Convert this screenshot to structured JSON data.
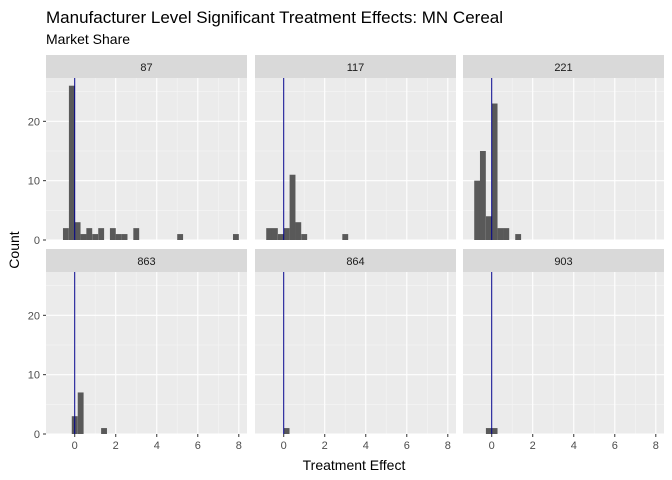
{
  "chart_data": {
    "type": "bar",
    "chart_kind": "faceted histogram",
    "title": "Manufacturer Level Significant Treatment Effects: MN Cereal",
    "subtitle": "Market Share",
    "xlabel": "Treatment Effect",
    "ylabel": "Count",
    "xlim": [
      -1.4,
      8.4
    ],
    "ylim": [
      0,
      27.3
    ],
    "x_ticks": [
      0,
      2,
      4,
      6,
      8
    ],
    "y_ticks": [
      0,
      10,
      20
    ],
    "bin_width": 0.2857,
    "grid": true,
    "reference_line": {
      "x": 0,
      "color": "#00008b"
    },
    "bar_color": "#595959",
    "panel_background": "#ebebeb",
    "strip_background": "#d9d9d9",
    "facets": [
      {
        "label": "87",
        "bins": [
          {
            "x": -0.43,
            "count": 2
          },
          {
            "x": -0.14,
            "count": 26
          },
          {
            "x": 0.14,
            "count": 3
          },
          {
            "x": 0.43,
            "count": 1
          },
          {
            "x": 0.71,
            "count": 2
          },
          {
            "x": 1.0,
            "count": 1
          },
          {
            "x": 1.29,
            "count": 2
          },
          {
            "x": 1.86,
            "count": 2
          },
          {
            "x": 2.14,
            "count": 1
          },
          {
            "x": 2.43,
            "count": 1
          },
          {
            "x": 3.0,
            "count": 2
          },
          {
            "x": 5.14,
            "count": 1
          },
          {
            "x": 7.86,
            "count": 1
          }
        ]
      },
      {
        "label": "117",
        "bins": [
          {
            "x": -0.71,
            "count": 2
          },
          {
            "x": -0.43,
            "count": 2
          },
          {
            "x": -0.14,
            "count": 1
          },
          {
            "x": 0.14,
            "count": 2
          },
          {
            "x": 0.43,
            "count": 11
          },
          {
            "x": 0.71,
            "count": 3
          },
          {
            "x": 1.0,
            "count": 1
          },
          {
            "x": 3.0,
            "count": 1
          }
        ]
      },
      {
        "label": "221",
        "bins": [
          {
            "x": -0.71,
            "count": 10
          },
          {
            "x": -0.43,
            "count": 15
          },
          {
            "x": -0.14,
            "count": 4
          },
          {
            "x": 0.14,
            "count": 23
          },
          {
            "x": 0.43,
            "count": 2
          },
          {
            "x": 0.71,
            "count": 2
          },
          {
            "x": 1.29,
            "count": 1
          }
        ]
      },
      {
        "label": "863",
        "bins": [
          {
            "x": 0.0,
            "count": 3
          },
          {
            "x": 0.29,
            "count": 7
          },
          {
            "x": 1.43,
            "count": 1
          }
        ]
      },
      {
        "label": "864",
        "bins": [
          {
            "x": 0.14,
            "count": 1
          }
        ]
      },
      {
        "label": "903",
        "bins": [
          {
            "x": -0.14,
            "count": 1
          },
          {
            "x": 0.14,
            "count": 1
          }
        ]
      }
    ]
  }
}
